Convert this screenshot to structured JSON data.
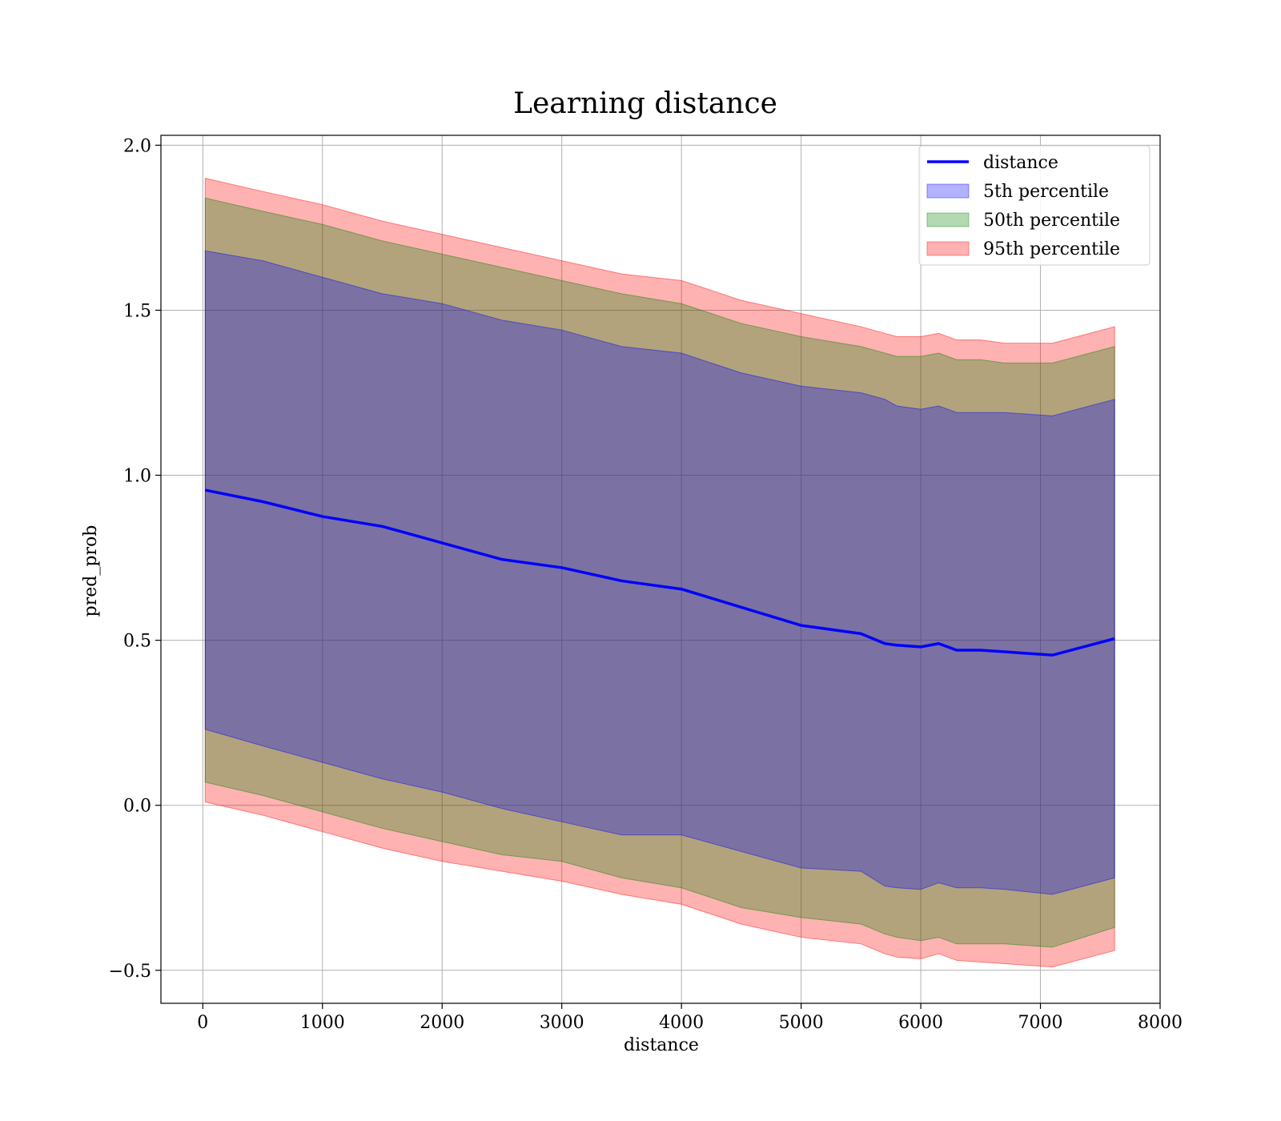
{
  "chart_data": {
    "type": "area",
    "title": "Learning distance",
    "xlabel": "distance",
    "ylabel": "pred_prob",
    "xlim": [
      -350,
      8000
    ],
    "ylim": [
      -0.6,
      2.03
    ],
    "xticks": [
      0,
      1000,
      2000,
      3000,
      4000,
      5000,
      6000,
      7000,
      8000
    ],
    "xtick_labels": [
      "0",
      "1000",
      "2000",
      "3000",
      "4000",
      "5000",
      "6000",
      "7000",
      "8000"
    ],
    "yticks": [
      -0.5,
      0.0,
      0.5,
      1.0,
      1.5,
      2.0
    ],
    "ytick_labels": [
      "−0.5",
      "0.0",
      "0.5",
      "1.0",
      "1.5",
      "2.0"
    ],
    "grid": true,
    "legend_position": "top-right",
    "x": [
      20,
      500,
      1000,
      1500,
      2000,
      2500,
      3000,
      3500,
      4000,
      4500,
      5000,
      5500,
      5700,
      5800,
      6000,
      6150,
      6300,
      6500,
      6700,
      7100,
      7620
    ],
    "series": [
      {
        "name": "distance",
        "kind": "line",
        "color": "#0000ff",
        "values": [
          0.955,
          0.92,
          0.875,
          0.845,
          0.795,
          0.745,
          0.72,
          0.68,
          0.655,
          0.6,
          0.545,
          0.52,
          0.49,
          0.485,
          0.48,
          0.49,
          0.47,
          0.47,
          0.465,
          0.455,
          0.505
        ]
      },
      {
        "name": "5th percentile",
        "kind": "band",
        "color": "#0000ff",
        "opacity": 0.3,
        "lower": [
          0.23,
          0.18,
          0.13,
          0.08,
          0.04,
          -0.01,
          -0.05,
          -0.09,
          -0.09,
          -0.14,
          -0.19,
          -0.2,
          -0.245,
          -0.25,
          -0.255,
          -0.235,
          -0.25,
          -0.25,
          -0.255,
          -0.27,
          -0.22
        ],
        "upper": [
          1.68,
          1.65,
          1.6,
          1.55,
          1.52,
          1.47,
          1.44,
          1.39,
          1.37,
          1.31,
          1.27,
          1.25,
          1.23,
          1.21,
          1.2,
          1.21,
          1.19,
          1.19,
          1.19,
          1.18,
          1.23
        ]
      },
      {
        "name": "50th percentile",
        "kind": "band",
        "color": "#008000",
        "opacity": 0.3,
        "lower": [
          0.07,
          0.03,
          -0.02,
          -0.07,
          -0.11,
          -0.15,
          -0.17,
          -0.22,
          -0.25,
          -0.31,
          -0.34,
          -0.36,
          -0.39,
          -0.4,
          -0.41,
          -0.4,
          -0.42,
          -0.42,
          -0.42,
          -0.43,
          -0.37
        ],
        "upper": [
          1.84,
          1.8,
          1.76,
          1.71,
          1.67,
          1.63,
          1.59,
          1.55,
          1.52,
          1.46,
          1.42,
          1.39,
          1.37,
          1.36,
          1.36,
          1.37,
          1.35,
          1.35,
          1.34,
          1.34,
          1.39
        ]
      },
      {
        "name": "95th percentile",
        "kind": "band",
        "color": "#ff0000",
        "opacity": 0.3,
        "lower": [
          0.01,
          -0.03,
          -0.08,
          -0.13,
          -0.17,
          -0.2,
          -0.23,
          -0.27,
          -0.3,
          -0.36,
          -0.4,
          -0.42,
          -0.45,
          -0.46,
          -0.465,
          -0.45,
          -0.47,
          -0.475,
          -0.48,
          -0.49,
          -0.44
        ],
        "upper": [
          1.9,
          1.86,
          1.82,
          1.77,
          1.73,
          1.69,
          1.65,
          1.61,
          1.59,
          1.53,
          1.49,
          1.45,
          1.43,
          1.42,
          1.42,
          1.43,
          1.41,
          1.41,
          1.4,
          1.4,
          1.45
        ]
      }
    ]
  }
}
